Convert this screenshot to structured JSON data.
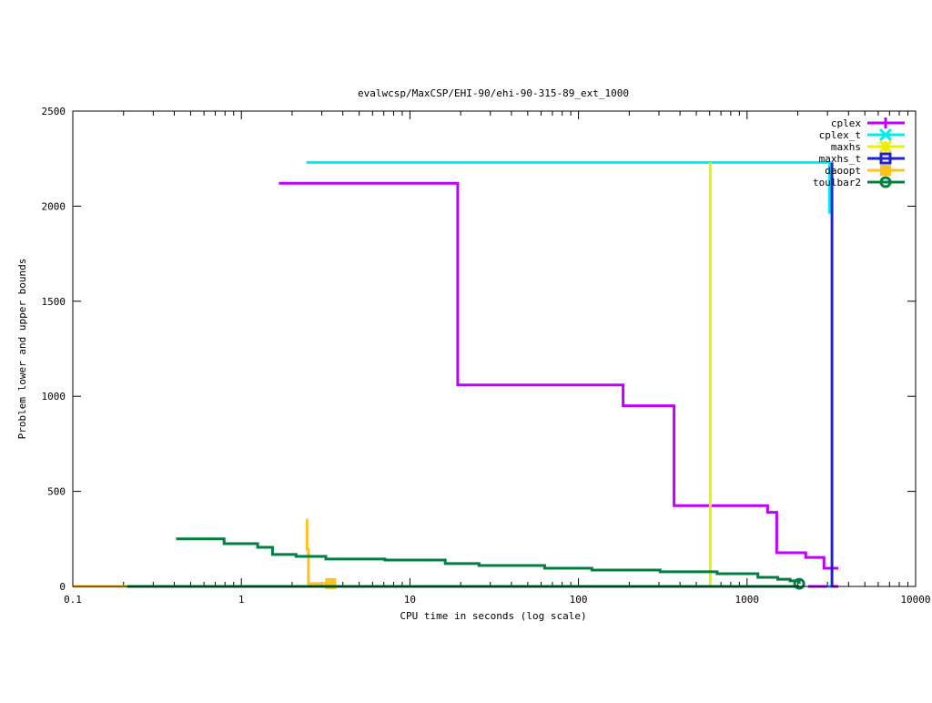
{
  "chart_data": {
    "type": "line",
    "title": "evalwcsp/MaxCSP/EHI-90/ehi-90-315-89_ext_1000",
    "xlabel": "CPU time in seconds (log scale)",
    "ylabel": "Problem lower and upper bounds",
    "xscale": "log",
    "xlim": [
      0.1,
      10000
    ],
    "ylim": [
      0,
      2500
    ],
    "xticks": [
      "0.1",
      "1",
      "10",
      "100",
      "1000",
      "10000"
    ],
    "xtick_values": [
      0.1,
      1,
      10,
      100,
      1000,
      10000
    ],
    "yticks": [
      "0",
      "500",
      "1000",
      "1500",
      "2000",
      "2500"
    ],
    "ytick_values": [
      0,
      500,
      1000,
      1500,
      2000,
      2500
    ],
    "grid": false,
    "legend_position": "top-right",
    "series": [
      {
        "name": "cplex",
        "color": "#c000ff",
        "marker": "plus",
        "upper": [
          [
            1.67,
            2120
          ],
          [
            19.2,
            2120
          ],
          [
            19.2,
            1060
          ],
          [
            184,
            1060
          ],
          [
            184,
            950
          ],
          [
            369,
            950
          ],
          [
            369,
            425
          ],
          [
            1325,
            425
          ],
          [
            1325,
            390
          ],
          [
            1500,
            390
          ],
          [
            1500,
            177
          ],
          [
            2230,
            177
          ],
          [
            2230,
            153
          ],
          [
            2860,
            153
          ],
          [
            2860,
            96
          ],
          [
            3480,
            96
          ]
        ],
        "lower": [
          [
            2300,
            0
          ],
          [
            3480,
            0
          ]
        ]
      },
      {
        "name": "cplex_t",
        "color": "#00eeee",
        "marker": "cross",
        "upper": [
          [
            2.43,
            2230
          ],
          [
            3080,
            2230
          ],
          [
            3080,
            1960
          ]
        ],
        "lower": [
          [
            3000,
            0
          ],
          [
            3150,
            0
          ]
        ]
      },
      {
        "name": "maxhs",
        "color": "#eeee00",
        "marker": "star",
        "upper": [
          [
            605,
            2230
          ],
          [
            605,
            0
          ]
        ],
        "lower": []
      },
      {
        "name": "maxhs_t",
        "color": "#2222cc",
        "marker": "box",
        "upper": [
          [
            3190,
            2230
          ],
          [
            3190,
            0
          ]
        ],
        "lower": []
      },
      {
        "name": "daoopt",
        "color": "#ffc020",
        "marker": "filled-box",
        "upper": [
          [
            2.43,
            350
          ],
          [
            2.45,
            350
          ],
          [
            2.45,
            196
          ],
          [
            2.5,
            196
          ],
          [
            2.5,
            15
          ],
          [
            3.39,
            15
          ]
        ],
        "lower": [
          [
            0.1,
            0
          ],
          [
            0.21,
            0
          ]
        ]
      },
      {
        "name": "toulbar2",
        "color": "#007f3f",
        "marker": "circle",
        "upper": [
          [
            0.41,
            250
          ],
          [
            0.79,
            250
          ],
          [
            0.79,
            225
          ],
          [
            1.25,
            225
          ],
          [
            1.25,
            206
          ],
          [
            1.53,
            206
          ],
          [
            1.53,
            168
          ],
          [
            2.11,
            168
          ],
          [
            2.11,
            158
          ],
          [
            3.17,
            158
          ],
          [
            3.17,
            144
          ],
          [
            7.1,
            144
          ],
          [
            7.1,
            139
          ],
          [
            16.2,
            139
          ],
          [
            16.2,
            120
          ],
          [
            25.7,
            120
          ],
          [
            25.7,
            110
          ],
          [
            63,
            110
          ],
          [
            63,
            96
          ],
          [
            120,
            96
          ],
          [
            120,
            86
          ],
          [
            305,
            86
          ],
          [
            305,
            77
          ],
          [
            664,
            77
          ],
          [
            664,
            67
          ],
          [
            1160,
            67
          ],
          [
            1160,
            48
          ],
          [
            1520,
            48
          ],
          [
            1520,
            38
          ],
          [
            1800,
            38
          ],
          [
            1800,
            29
          ],
          [
            2040,
            29
          ],
          [
            2040,
            14
          ]
        ],
        "lower": [
          [
            0.21,
            0
          ],
          [
            2040,
            0
          ]
        ]
      }
    ]
  }
}
